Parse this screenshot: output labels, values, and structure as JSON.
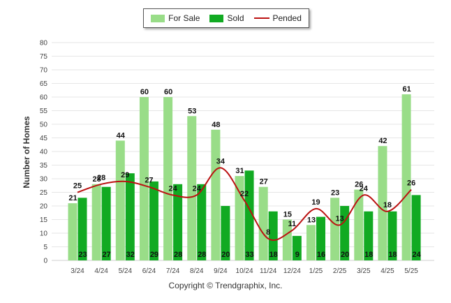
{
  "copyright": "Copyright © Trendgraphix, Inc.",
  "chart_data": {
    "type": "bar",
    "title": "",
    "xlabel": "",
    "ylabel": "Number of Homes",
    "ylim": [
      0,
      80
    ],
    "yticks": [
      0,
      5,
      10,
      15,
      20,
      25,
      30,
      35,
      40,
      45,
      50,
      55,
      60,
      65,
      70,
      75,
      80
    ],
    "grid": true,
    "legend_position": "top-center",
    "categories": [
      "3/24",
      "4/24",
      "5/24",
      "6/24",
      "7/24",
      "8/24",
      "9/24",
      "10/24",
      "11/24",
      "12/24",
      "1/25",
      "2/25",
      "3/25",
      "4/25",
      "5/25"
    ],
    "series": [
      {
        "name": "For Sale",
        "kind": "bar",
        "color": "#99dd88",
        "values": [
          21,
          28,
          44,
          60,
          60,
          53,
          48,
          31,
          27,
          15,
          13,
          23,
          26,
          42,
          61
        ]
      },
      {
        "name": "Sold",
        "kind": "bar",
        "color": "#11aa22",
        "values": [
          23,
          27,
          32,
          29,
          28,
          28,
          20,
          33,
          18,
          9,
          16,
          20,
          18,
          18,
          24
        ]
      },
      {
        "name": "Pended",
        "kind": "line",
        "color": "#bb1111",
        "values": [
          25,
          28,
          29,
          27,
          24,
          24,
          34,
          22,
          8,
          11,
          19,
          13,
          24,
          18,
          26
        ]
      }
    ]
  }
}
